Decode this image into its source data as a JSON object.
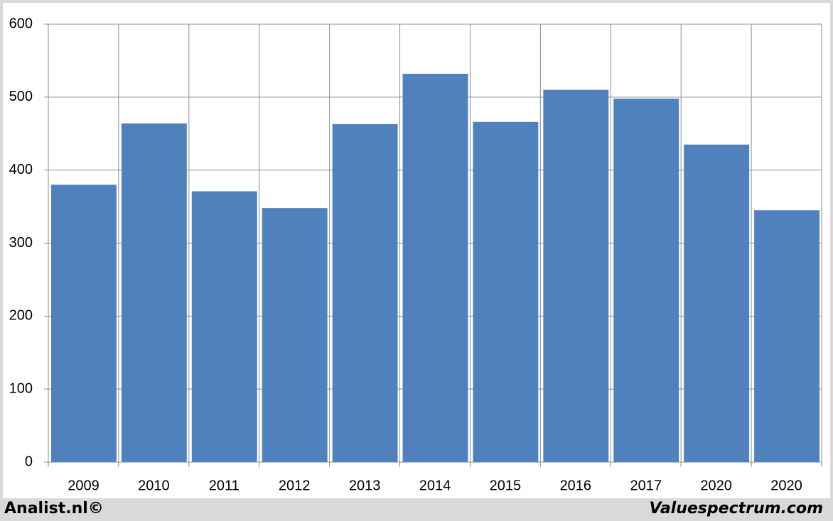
{
  "chart_data": {
    "type": "bar",
    "categories": [
      "2009",
      "2010",
      "2011",
      "2012",
      "2013",
      "2014",
      "2015",
      "2016",
      "2017",
      "2020",
      "2020"
    ],
    "values": [
      380,
      464,
      371,
      348,
      463,
      532,
      466,
      510,
      498,
      435,
      345
    ],
    "color": "#4f81bd",
    "ylim": [
      0,
      600
    ],
    "yticks": [
      0,
      100,
      200,
      300,
      400,
      500,
      600
    ],
    "grid": true
  },
  "footer": {
    "left": "Analist.nl©",
    "right": "Valuespectrum.com"
  }
}
